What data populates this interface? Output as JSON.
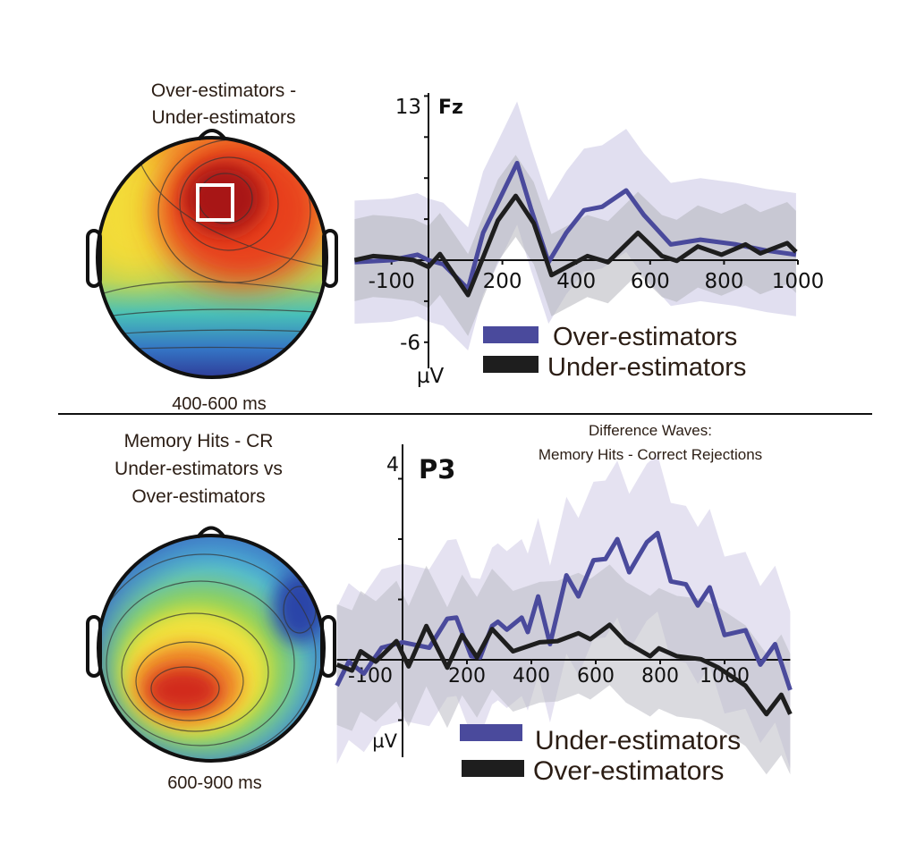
{
  "topomaps": [
    {
      "title_line1": "Over-estimators -",
      "title_line2": "Under-estimators",
      "window": "400-600 ms"
    },
    {
      "title_line1": "Memory Hits - CR",
      "title_line2": "Under-estimators vs",
      "title_line3": "Over-estimators",
      "window": "600-900 ms"
    }
  ],
  "chart_data": [
    {
      "type": "line",
      "channel": "Fz",
      "ylabel": "µV",
      "ylim": [
        -6,
        13
      ],
      "y_tick_labels": [
        "13",
        "-6"
      ],
      "xlim": [
        -200,
        1000
      ],
      "x_tick_labels": [
        "-100",
        "200",
        "400",
        "600",
        "800",
        "1000"
      ],
      "x_ticks": [
        -100,
        200,
        400,
        600,
        800,
        1000
      ],
      "series": [
        {
          "name": "Over-estimators",
          "color": "#4a4a9c",
          "band_color": "#c8c4e4",
          "band_halfwidth": 4.5,
          "x": [
            -200,
            -100,
            -30,
            0,
            40,
            107,
            148,
            188,
            240,
            277,
            325,
            373,
            421,
            470,
            535,
            583,
            656,
            736,
            833,
            915,
            995
          ],
          "y": [
            -0.15,
            0.0,
            0.4,
            0.0,
            -0.3,
            -2.1,
            2.0,
            4.2,
            7.1,
            3.8,
            -0.15,
            2.0,
            3.65,
            3.9,
            5.1,
            3.3,
            1.15,
            1.5,
            1.15,
            0.7,
            0.4
          ]
        },
        {
          "name": "Under-estimators",
          "color": "#1e1e1e",
          "band_color": "#b4b4bc",
          "band_halfwidth": 3.0,
          "x": [
            -200,
            -150,
            -100,
            -40,
            0,
            31,
            107,
            188,
            236,
            285,
            333,
            430,
            486,
            567,
            632,
            672,
            729,
            793,
            858,
            898,
            971,
            995
          ],
          "y": [
            0.0,
            0.3,
            0.2,
            0.0,
            -0.5,
            0.45,
            -2.55,
            2.9,
            4.7,
            2.7,
            -1.1,
            0.3,
            -0.15,
            2.0,
            0.3,
            -0.05,
            1.0,
            0.4,
            1.15,
            0.5,
            1.25,
            0.6
          ]
        }
      ]
    },
    {
      "type": "line",
      "channel": "P3",
      "title_line1": "Difference Waves:",
      "title_line2": "Memory Hits - Correct Rejections",
      "ylabel": "µV",
      "ylim": [
        -1.6,
        3.6
      ],
      "y_tick_labels": [
        "4"
      ],
      "xlim": [
        -204,
        1204
      ],
      "x_tick_labels": [
        "-100",
        "200",
        "400",
        "600",
        "800",
        "1000"
      ],
      "x_ticks": [
        -100,
        200,
        400,
        600,
        800,
        1000
      ],
      "series": [
        {
          "name": "Under-estimators",
          "color": "#4a4a9c",
          "band_color": "#cfcbe6",
          "band_halfwidth": 1.3,
          "x": [
            -204,
            -167,
            -120,
            -65,
            0,
            83,
            139,
            167,
            213,
            241,
            278,
            296,
            324,
            370,
            389,
            421,
            458,
            509,
            546,
            593,
            630,
            667,
            704,
            731,
            759,
            792,
            833,
            880,
            917,
            954,
            1000,
            1065,
            1111,
            1157,
            1204
          ],
          "y": [
            -0.43,
            -0.03,
            -0.23,
            0.2,
            0.29,
            0.2,
            0.68,
            0.7,
            0.06,
            0.04,
            0.56,
            0.63,
            0.5,
            0.7,
            0.46,
            1.05,
            0.26,
            1.4,
            1.05,
            1.65,
            1.67,
            2.0,
            1.45,
            1.7,
            1.95,
            2.1,
            1.3,
            1.25,
            0.9,
            1.2,
            0.41,
            0.49,
            -0.08,
            0.26,
            -0.5
          ]
        },
        {
          "name": "Over-estimators",
          "color": "#1e1e1e",
          "band_color": "#bcbcc4",
          "band_halfwidth": 1.0,
          "x": [
            -204,
            -157,
            -130,
            -83,
            -19,
            19,
            74,
            139,
            185,
            231,
            278,
            343,
            426,
            481,
            546,
            583,
            643,
            694,
            769,
            796,
            852,
            926,
            981,
            1065,
            1130,
            1176,
            1204
          ],
          "y": [
            -0.08,
            -0.18,
            0.14,
            -0.03,
            0.31,
            -0.11,
            0.56,
            -0.13,
            0.41,
            0.04,
            0.51,
            0.14,
            0.29,
            0.31,
            0.44,
            0.34,
            0.58,
            0.29,
            0.06,
            0.19,
            0.06,
            0.01,
            -0.13,
            -0.43,
            -0.9,
            -0.58,
            -0.9
          ]
        }
      ]
    }
  ]
}
